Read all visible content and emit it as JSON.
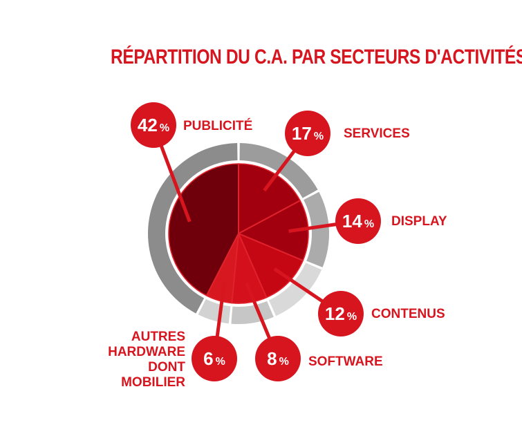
{
  "chart_data": {
    "type": "pie",
    "title": "RÉPARTITION DU C.A. PAR SECTEURS D'ACTIVITÉS",
    "percent_sign": "%",
    "slices": [
      {
        "label": "SERVICES",
        "value": 17,
        "value_label": "17",
        "color": "#a3000f",
        "ring_color": "#9c9c9c"
      },
      {
        "label": "DISPLAY",
        "value": 14,
        "value_label": "14",
        "color": "#a3000f",
        "ring_color": "#ababab"
      },
      {
        "label": "CONTENUS",
        "value": 12,
        "value_label": "12",
        "color": "#c40713",
        "ring_color": "#d9d9d9"
      },
      {
        "label": "SOFTWARE",
        "value": 8,
        "value_label": "8",
        "color": "#d3101b",
        "ring_color": "#c6c6c6"
      },
      {
        "label": "AUTRES HARDWARE DONT MOBILIER",
        "label_lines": [
          "AUTRES",
          "HARDWARE",
          "DONT",
          "MOBILIER"
        ],
        "value": 6,
        "value_label": "6",
        "color": "#d81820",
        "ring_color": "#d2d2d2"
      },
      {
        "label": "PUBLICITÉ",
        "value": 42,
        "value_label": "42",
        "color": "#6f000b",
        "ring_color": "#8c8c8c"
      }
    ],
    "accent_color": "#d7151f",
    "legend": "none"
  }
}
